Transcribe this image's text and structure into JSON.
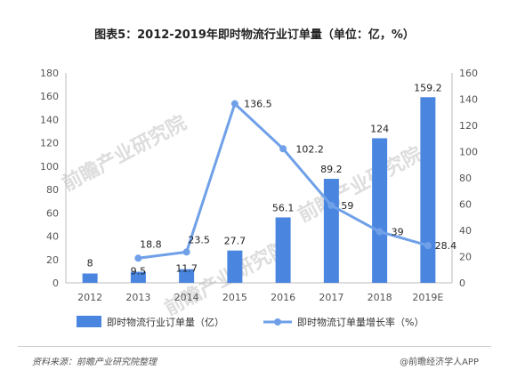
{
  "chart_data": {
    "type": "bar",
    "title": "图表5：2012-2019年即时物流行业订单量（单位：亿，%）",
    "categories": [
      "2012",
      "2013",
      "2014",
      "2015",
      "2016",
      "2017",
      "2018",
      "2019E"
    ],
    "series": [
      {
        "name": "即时物流行业订单量（亿）",
        "type": "bar",
        "axis": "left",
        "values": [
          8,
          9.5,
          11.7,
          27.7,
          56.1,
          89.2,
          124,
          159.2
        ],
        "labels": [
          "8",
          "9.5",
          "11.7",
          "27.7",
          "56.1",
          "89.2",
          "124",
          "159.2"
        ]
      },
      {
        "name": "即时物流订单量增长率（%）",
        "type": "line",
        "axis": "right",
        "values": [
          null,
          18.8,
          23.5,
          136.5,
          102.2,
          59,
          39,
          28.4
        ],
        "labels": [
          "",
          "18.8",
          "23.5",
          "136.5",
          "102.2",
          "59",
          "39",
          "28.4"
        ]
      }
    ],
    "yleft": {
      "ylim": [
        0,
        180
      ],
      "ticks": [
        "0",
        "20",
        "40",
        "60",
        "80",
        "100",
        "120",
        "140",
        "160",
        "180"
      ]
    },
    "yright": {
      "ylim": [
        0,
        160
      ],
      "ticks": [
        "0",
        "20",
        "40",
        "60",
        "80",
        "100",
        "120",
        "140",
        "160"
      ]
    },
    "grid": false,
    "legend_position": "bottom",
    "colors": {
      "bar": "#4a86e0",
      "line": "#6fa0e8"
    },
    "watermark": "前瞻产业研究院"
  },
  "footer": {
    "source": "资料来源：前瞻产业研究院整理",
    "brand": "@前瞻经济学人APP"
  }
}
